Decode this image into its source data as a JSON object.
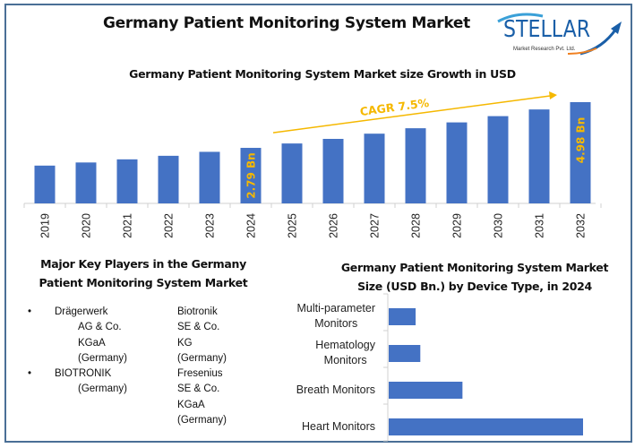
{
  "header": {
    "title": "Germany Patient Monitoring System Market",
    "logo": {
      "brand": "STELLAR",
      "subtitle": "Market Research Pvt. Ltd.",
      "icon": "rising-arrow-icon"
    }
  },
  "key_players": {
    "title_line1": "Major Key Players in the Germany",
    "title_line2": "Patient Monitoring System Market",
    "column1": [
      {
        "lines": [
          "Drägerwerk",
          "AG & Co.",
          "KGaA",
          "(Germany)"
        ],
        "bullet": true
      },
      {
        "lines": [
          "BIOTRONIK",
          "(Germany)"
        ],
        "bullet": true
      }
    ],
    "column2": [
      {
        "lines": [
          "Biotronik",
          "SE & Co.",
          "KG",
          "(Germany)"
        ],
        "bullet": false
      },
      {
        "lines": [
          "Fresenius",
          "SE & Co.",
          "KGaA",
          "(Germany)"
        ],
        "bullet": false
      }
    ],
    "bullet_glyph": "•"
  },
  "colors": {
    "bar": "#4472c4",
    "annotation": "#f5b800",
    "frame": "#4a6f96",
    "axis": "#d0d0d0"
  },
  "chart_data": [
    {
      "type": "bar",
      "title": "Germany Patient Monitoring System Market size Growth in USD",
      "xlabel": "",
      "ylabel": "",
      "categories": [
        "2019",
        "2020",
        "2021",
        "2022",
        "2023",
        "2024",
        "2025",
        "2026",
        "2027",
        "2028",
        "2029",
        "2030",
        "2031",
        "2032"
      ],
      "values": [
        1.94,
        2.09,
        2.24,
        2.41,
        2.6,
        2.79,
        3.0,
        3.22,
        3.47,
        3.73,
        4.01,
        4.31,
        4.63,
        4.98
      ],
      "unit": "USD Bn",
      "ylim": [
        0,
        5.2
      ],
      "grid": false,
      "data_labels": [
        {
          "category": "2024",
          "text": "2.79 Bn"
        },
        {
          "category": "2032",
          "text": "4.98 Bn"
        }
      ],
      "annotations": [
        {
          "text": "CAGR 7.5%",
          "type": "arrow",
          "from_category": "2025",
          "to_category": "2032"
        }
      ]
    },
    {
      "type": "bar",
      "orientation": "horizontal",
      "title_line1": "Germany Patient Monitoring System Market",
      "title_line2": "Size (USD Bn.) by Device Type, in 2024",
      "categories": [
        {
          "line1": "Multi-parameter",
          "line2": "Monitors"
        },
        {
          "line1": "Hematology",
          "line2": "Monitors"
        },
        {
          "line1": "Breath Monitors",
          "line2": ""
        },
        {
          "line1": "Heart Monitors",
          "line2": ""
        }
      ],
      "values": [
        0.23,
        0.27,
        0.63,
        1.66
      ],
      "unit": "USD Bn",
      "xlim": [
        0,
        2.0
      ],
      "grid": false
    }
  ]
}
